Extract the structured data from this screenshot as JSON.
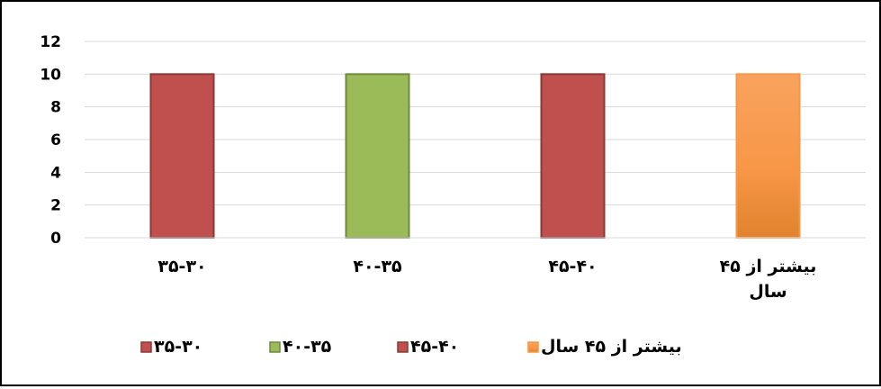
{
  "chart_data": {
    "type": "bar",
    "categories": [
      "۳۵-۳۰",
      "۴۰-۳۵",
      "۴۵-۴۰",
      "بیشتر از ۴۵ سال"
    ],
    "category_lines": [
      [
        "۳۵-۳۰"
      ],
      [
        "۴۰-۳۵"
      ],
      [
        "۴۵-۴۰"
      ],
      [
        "بیشتر از ۴۵",
        "سال"
      ]
    ],
    "values": [
      10,
      10,
      10,
      10
    ],
    "ylim": [
      0,
      12
    ],
    "yticks": [
      "0",
      "2",
      "4",
      "6",
      "8",
      "10",
      "12"
    ],
    "grid": true,
    "legend_position": "bottom",
    "title": "",
    "xlabel": "",
    "ylabel": "",
    "colors": [
      "#C0504D",
      "#9BBB59",
      "#C0504D",
      "#F79646"
    ],
    "stroke_colors": [
      "#8C3836",
      "#71893F",
      "#8C3836",
      "#F79646"
    ],
    "legend": [
      "۳۵-۳۰",
      "۴۰-۳۵",
      "۴۵-۴۰",
      "بیشتر از ۴۵ سال"
    ]
  }
}
